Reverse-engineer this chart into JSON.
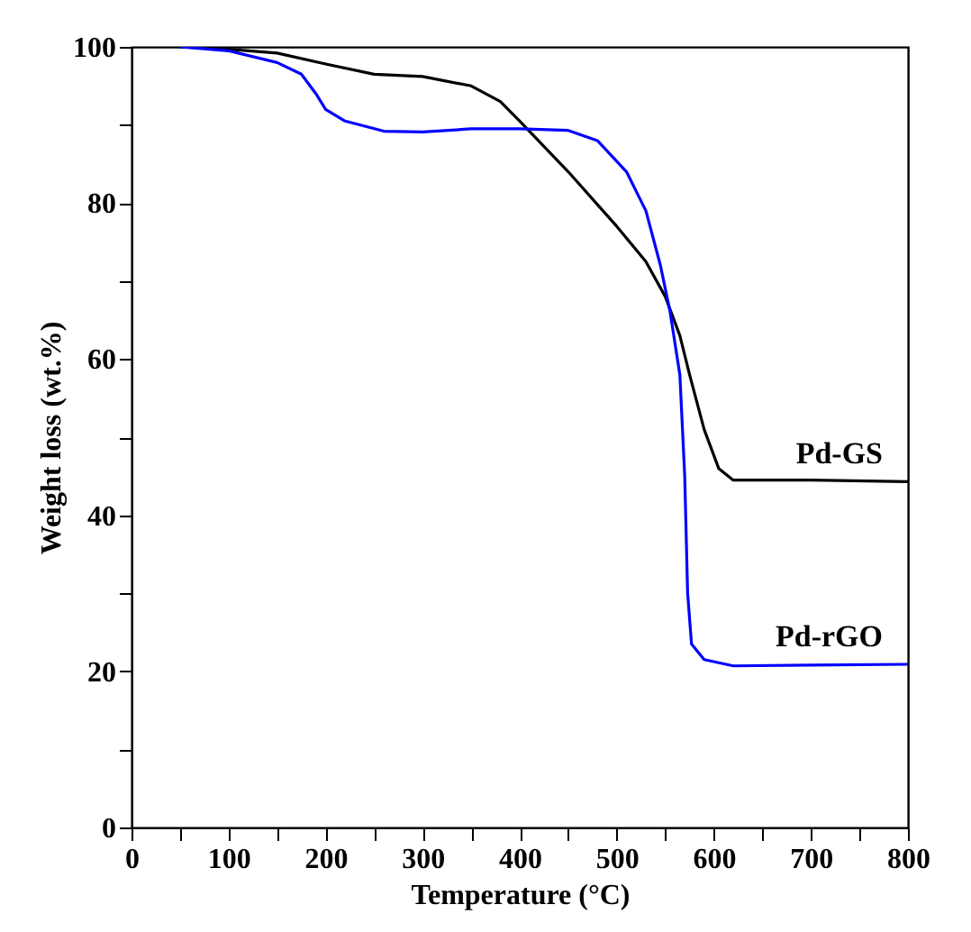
{
  "chart_data": {
    "type": "line",
    "xlabel": "Temperature (°C)",
    "ylabel": "Weight loss (wt.%)",
    "xlim": [
      0,
      800
    ],
    "xticks": [
      0,
      {
        "value": 50,
        "label": null
      },
      100,
      {
        "value": 150,
        "label": null
      },
      200,
      {
        "value": 250,
        "label": null
      },
      300,
      {
        "value": 350,
        "label": null
      },
      400,
      {
        "value": 450,
        "label": null
      },
      500,
      {
        "value": 550,
        "label": null
      },
      600,
      {
        "value": 650,
        "label": null
      },
      700,
      {
        "value": 750,
        "label": null
      },
      800
    ],
    "ylim": [
      0,
      100
    ],
    "yticks": [
      0,
      {
        "value": 10,
        "label": null
      },
      20,
      {
        "value": 30,
        "label": null
      },
      40,
      {
        "value": 50,
        "label": null
      },
      60,
      {
        "value": 70,
        "label": null
      },
      80,
      {
        "value": 90,
        "label": null
      },
      100
    ],
    "grid": false,
    "line_style": "solid",
    "marker": "none",
    "series": [
      {
        "name": "Pd-GS",
        "color": "#000000",
        "x": [
          50,
          100,
          150,
          200,
          250,
          300,
          350,
          380,
          400,
          450,
          500,
          530,
          550,
          565,
          575,
          590,
          605,
          620,
          700,
          800
        ],
        "values": [
          100,
          99.7,
          99.2,
          97.8,
          96.5,
          96.2,
          95,
          93,
          90.5,
          84,
          77,
          72.5,
          68,
          63,
          58,
          51,
          46,
          44.5,
          44.5,
          44.3
        ]
      },
      {
        "name": "Pd-rGO",
        "color": "#0000ff",
        "x": [
          50,
          100,
          150,
          175,
          190,
          200,
          220,
          260,
          300,
          350,
          400,
          450,
          480,
          510,
          530,
          545,
          555,
          565,
          570,
          573,
          577,
          590,
          620,
          700,
          800
        ],
        "values": [
          100,
          99.5,
          98,
          96.5,
          94,
          92,
          90.5,
          89.2,
          89.1,
          89.5,
          89.5,
          89.3,
          88,
          84,
          79,
          72,
          66,
          58,
          45,
          30,
          23.5,
          21.5,
          20.7,
          20.8,
          20.9
        ]
      }
    ]
  }
}
